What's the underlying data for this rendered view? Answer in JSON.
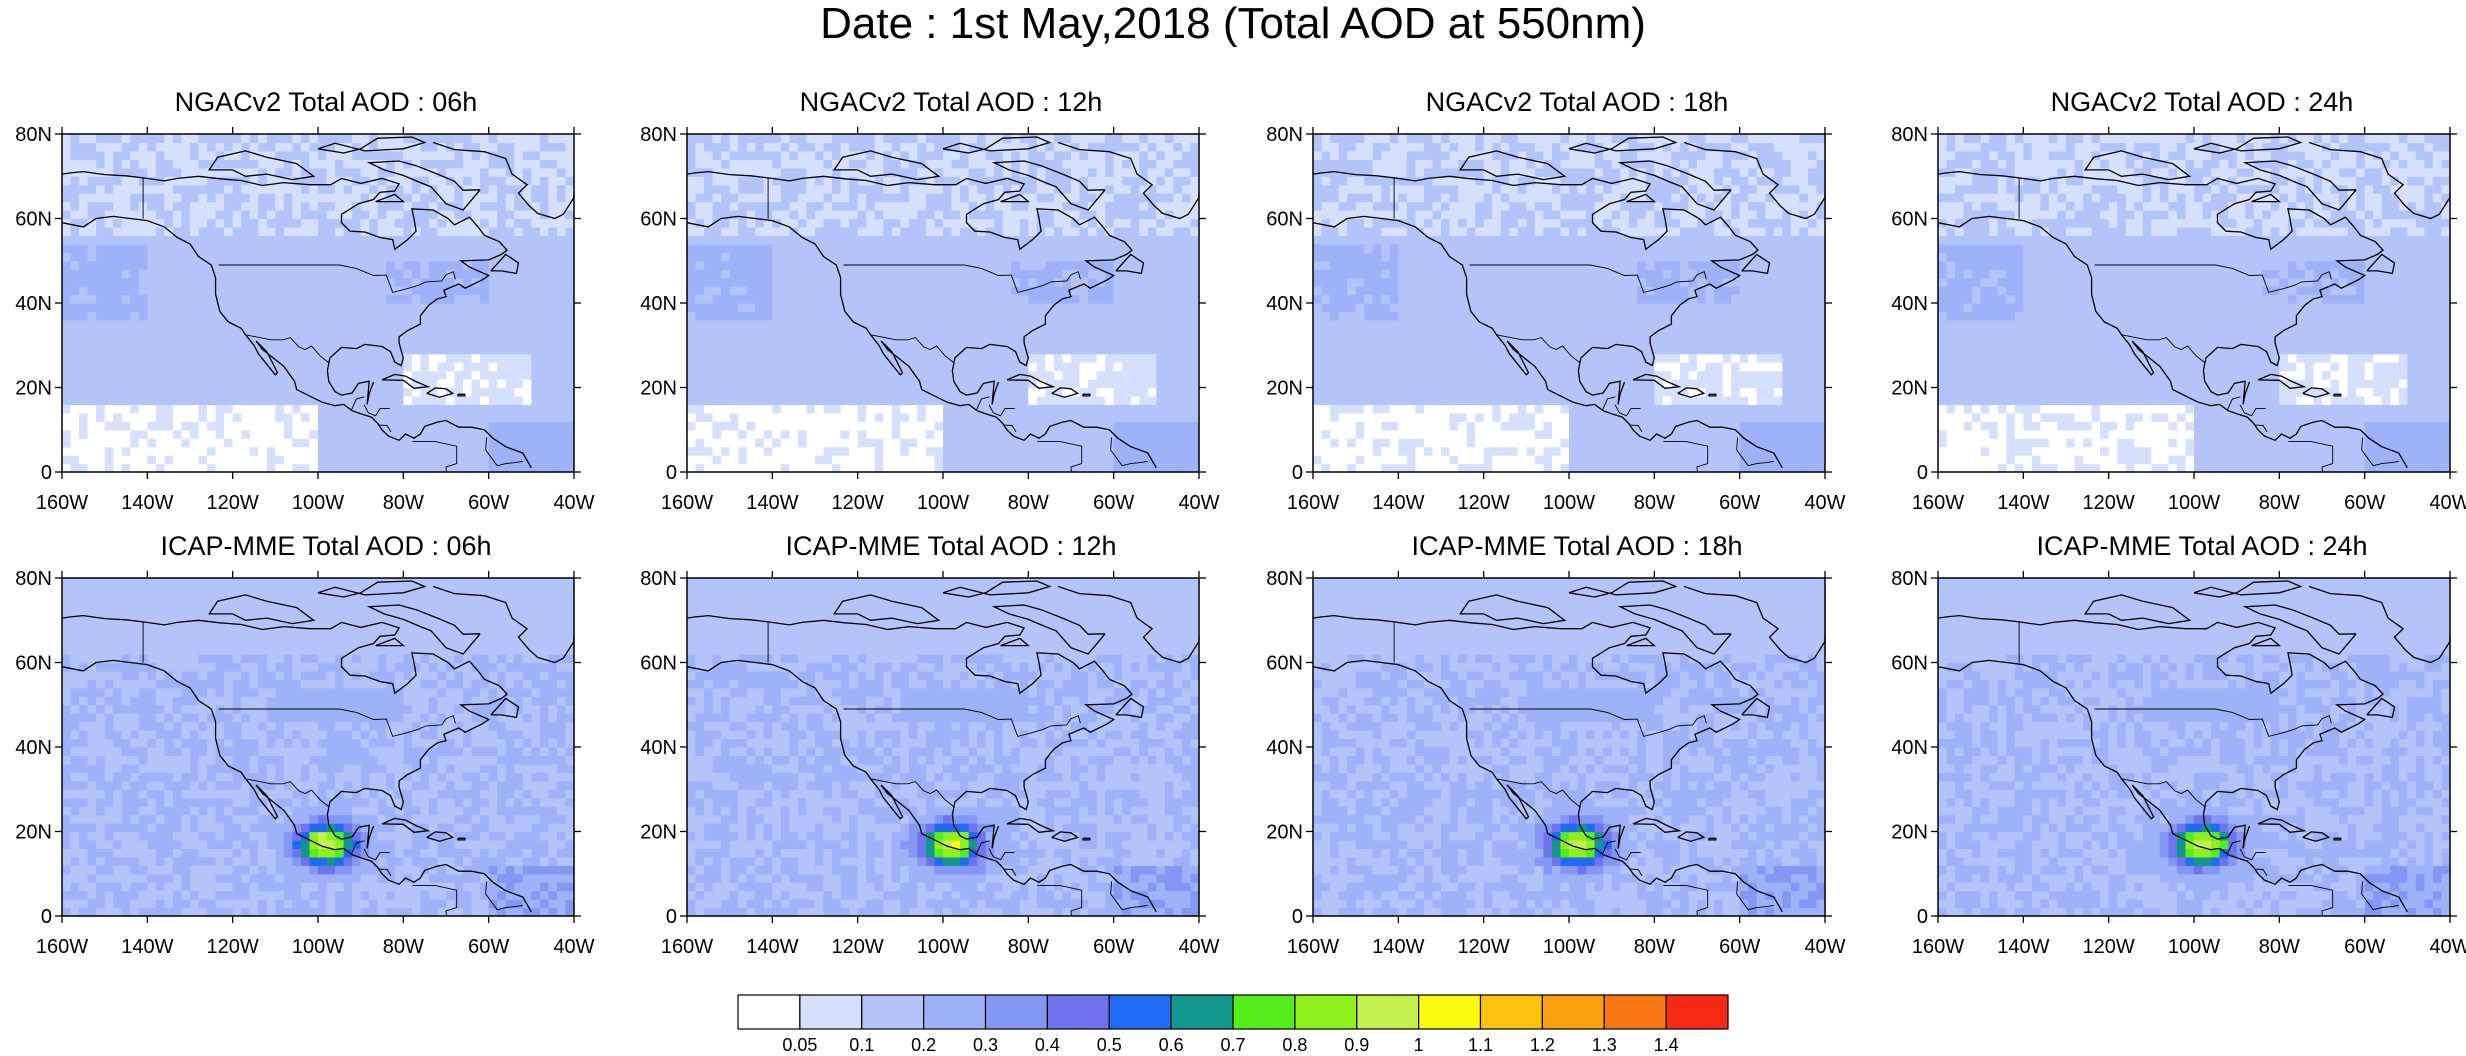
{
  "title": "Date : 1st May,2018 (Total AOD at 550nm)",
  "lat_labels": [
    "80N",
    "60N",
    "40N",
    "20N",
    "0"
  ],
  "lon_labels": [
    "160W",
    "140W",
    "120W",
    "100W",
    "80W",
    "60W",
    "40W"
  ],
  "panels": [
    {
      "title": "NGACv2 Total AOD : 06h",
      "model": "ngac"
    },
    {
      "title": "NGACv2 Total AOD : 12h",
      "model": "ngac"
    },
    {
      "title": "NGACv2 Total AOD : 18h",
      "model": "ngac"
    },
    {
      "title": "NGACv2 Total AOD : 24h",
      "model": "ngac"
    },
    {
      "title": "ICAP-MME Total AOD : 06h",
      "model": "icap"
    },
    {
      "title": "ICAP-MME Total AOD : 12h",
      "model": "icap"
    },
    {
      "title": "ICAP-MME Total AOD : 18h",
      "model": "icap"
    },
    {
      "title": "ICAP-MME Total AOD : 24h",
      "model": "icap"
    }
  ],
  "colorbar": {
    "labels": [
      "0.05",
      "0.1",
      "0.2",
      "0.3",
      "0.4",
      "0.5",
      "0.6",
      "0.7",
      "0.8",
      "0.9",
      "1",
      "1.1",
      "1.2",
      "1.3",
      "1.4"
    ],
    "colors": [
      "#ffffff",
      "#d6e0fd",
      "#b3c4fb",
      "#9db2f9",
      "#8597f4",
      "#6f73ee",
      "#1e6cf5",
      "#12968d",
      "#55ee1c",
      "#8ef01c",
      "#c2f04c",
      "#fafa0e",
      "#fcc20e",
      "#fba00f",
      "#f97712",
      "#f62a14"
    ]
  }
}
